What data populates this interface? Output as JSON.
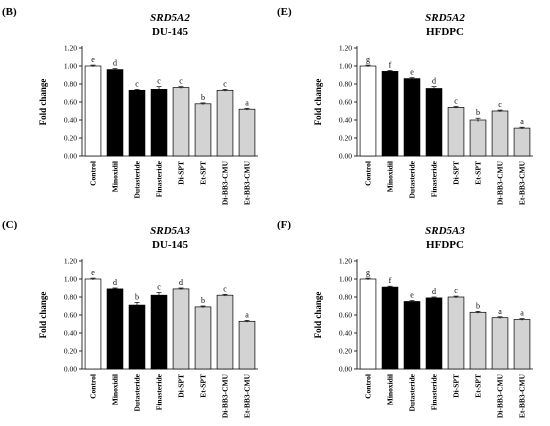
{
  "colors": {
    "control": "#ffffff",
    "drug": "#000000",
    "extract": "#d3d3d3",
    "axis": "#000000"
  },
  "chart_data": [
    {
      "type": "bar",
      "panel": "(B)",
      "gene": "SRD5A2",
      "cell": "DU-145",
      "ylabel": "Fold change",
      "ylim": [
        0,
        1.2
      ],
      "yticks": [
        "0.00",
        "0.20",
        "0.40",
        "0.60",
        "0.80",
        "1.00",
        "1.20"
      ],
      "categories": [
        "Control",
        "Minoxidil",
        "Dutasteride",
        "Finasteride",
        "Di-SPT",
        "Et-SPT",
        "Di-BB3-CMU",
        "Et-BB3-CMU"
      ],
      "bar_colors": [
        "control",
        "drug",
        "drug",
        "drug",
        "extract",
        "extract",
        "extract",
        "extract"
      ],
      "values": [
        1.0,
        0.96,
        0.73,
        0.74,
        0.76,
        0.58,
        0.73,
        0.52
      ],
      "errors": [
        0.01,
        0.01,
        0.01,
        0.03,
        0.01,
        0.01,
        0.01,
        0.01
      ],
      "letters": [
        "e",
        "d",
        "c",
        "c",
        "c",
        "b",
        "c",
        "a"
      ]
    },
    {
      "type": "bar",
      "panel": "(E)",
      "gene": "SRD5A2",
      "cell": "HFDPC",
      "ylabel": "Fold change",
      "ylim": [
        0,
        1.2
      ],
      "yticks": [
        "0.00",
        "0.20",
        "0.40",
        "0.60",
        "0.80",
        "1.00",
        "1.20"
      ],
      "categories": [
        "Control",
        "Minoxidil",
        "Dutasteride",
        "Finasteride",
        "Di-SPT",
        "Et-SPT",
        "Di-BB3-CMU",
        "Et-BB3-CMU"
      ],
      "bar_colors": [
        "control",
        "drug",
        "drug",
        "drug",
        "extract",
        "extract",
        "extract",
        "extract"
      ],
      "values": [
        1.0,
        0.94,
        0.86,
        0.75,
        0.54,
        0.4,
        0.5,
        0.31
      ],
      "errors": [
        0.01,
        0.01,
        0.01,
        0.02,
        0.01,
        0.02,
        0.01,
        0.01
      ],
      "letters": [
        "g",
        "f",
        "e",
        "d",
        "c",
        "b",
        "c",
        "a"
      ]
    },
    {
      "type": "bar",
      "panel": "(C)",
      "gene": "SRD5A3",
      "cell": "DU-145",
      "ylabel": "Fold change",
      "ylim": [
        0,
        1.2
      ],
      "yticks": [
        "0.00",
        "0.20",
        "0.40",
        "0.60",
        "0.80",
        "1.00",
        "1.20"
      ],
      "categories": [
        "Control",
        "Minoxidil",
        "Dutasteride",
        "Finasteride",
        "Di-SPT",
        "Et-SPT",
        "Di-BB3-CMU",
        "Et-BB3-CMU"
      ],
      "bar_colors": [
        "control",
        "drug",
        "drug",
        "drug",
        "extract",
        "extract",
        "extract",
        "extract"
      ],
      "values": [
        1.0,
        0.89,
        0.71,
        0.82,
        0.89,
        0.69,
        0.82,
        0.53
      ],
      "errors": [
        0.01,
        0.01,
        0.03,
        0.03,
        0.01,
        0.01,
        0.01,
        0.01
      ],
      "letters": [
        "e",
        "d",
        "b",
        "c",
        "d",
        "b",
        "c",
        "a"
      ]
    },
    {
      "type": "bar",
      "panel": "(F)",
      "gene": "SRD5A3",
      "cell": "HFDPC",
      "ylabel": "Fold change",
      "ylim": [
        0,
        1.2
      ],
      "yticks": [
        "0.00",
        "0.20",
        "0.40",
        "0.60",
        "0.80",
        "1.00",
        "1.20"
      ],
      "categories": [
        "Control",
        "Minoxidil",
        "Dutasteride",
        "Finasteride",
        "Di-SPT",
        "Et-SPT",
        "Di-BB3-CMU",
        "Et-BB3-CMU"
      ],
      "bar_colors": [
        "control",
        "drug",
        "drug",
        "drug",
        "extract",
        "extract",
        "extract",
        "extract"
      ],
      "values": [
        1.0,
        0.91,
        0.75,
        0.79,
        0.8,
        0.63,
        0.57,
        0.55
      ],
      "errors": [
        0.01,
        0.01,
        0.01,
        0.01,
        0.01,
        0.01,
        0.01,
        0.01
      ],
      "letters": [
        "g",
        "f",
        "e",
        "d",
        "c",
        "b",
        "a",
        "a"
      ]
    }
  ]
}
